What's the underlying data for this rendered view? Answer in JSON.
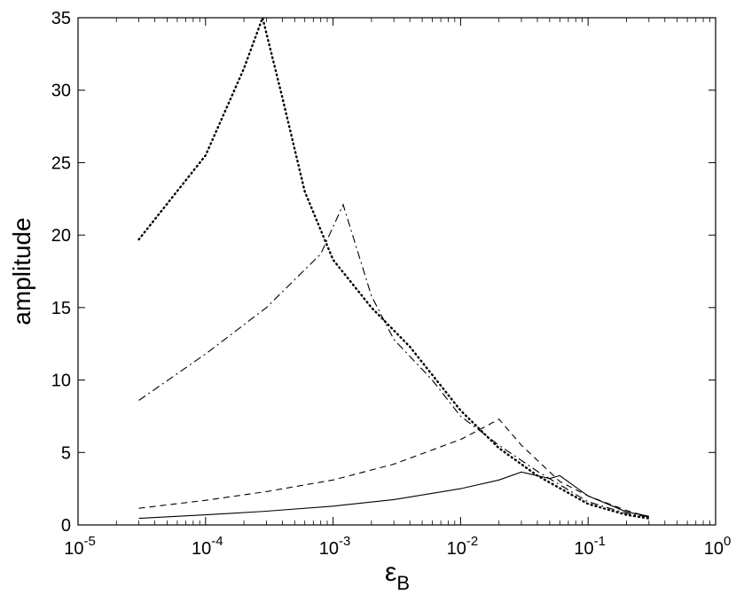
{
  "chart_data": {
    "type": "line",
    "xscale": "log",
    "xlim": [
      1e-05,
      1
    ],
    "ylim": [
      0,
      35
    ],
    "xlabel": "ε",
    "xlabel_subscript": "B",
    "ylabel": "amplitude",
    "grid": false,
    "legend": "none",
    "x_ticks": [
      {
        "value": 1e-05,
        "base": "10",
        "exp": "-5"
      },
      {
        "value": 0.0001,
        "base": "10",
        "exp": "-4"
      },
      {
        "value": 0.001,
        "base": "10",
        "exp": "-3"
      },
      {
        "value": 0.01,
        "base": "10",
        "exp": "-2"
      },
      {
        "value": 0.1,
        "base": "10",
        "exp": "-1"
      },
      {
        "value": 1,
        "base": "10",
        "exp": "0"
      }
    ],
    "y_ticks": [
      0,
      5,
      10,
      15,
      20,
      25,
      30,
      35
    ],
    "series": [
      {
        "style": "solid",
        "x": [
          3e-05,
          0.0001,
          0.0003,
          0.001,
          0.003,
          0.01,
          0.02,
          0.03,
          0.05,
          0.06,
          0.1,
          0.2,
          0.3
        ],
        "y": [
          0.45,
          0.7,
          0.95,
          1.3,
          1.75,
          2.5,
          3.1,
          3.65,
          3.2,
          3.4,
          2.0,
          0.9,
          0.6
        ]
      },
      {
        "style": "dashed",
        "x": [
          3e-05,
          0.0001,
          0.0003,
          0.001,
          0.003,
          0.01,
          0.015,
          0.02,
          0.03,
          0.06,
          0.1,
          0.2,
          0.3
        ],
        "y": [
          1.15,
          1.7,
          2.3,
          3.1,
          4.2,
          5.9,
          6.7,
          7.3,
          5.5,
          3.0,
          2.0,
          1.0,
          0.55
        ]
      },
      {
        "style": "dashdot",
        "x": [
          3e-05,
          0.0001,
          0.0003,
          0.0008,
          0.0012,
          0.002,
          0.003,
          0.006,
          0.01,
          0.02,
          0.04,
          0.1,
          0.2,
          0.3
        ],
        "y": [
          8.6,
          11.8,
          15.0,
          18.7,
          22.1,
          15.8,
          12.8,
          10.0,
          7.5,
          5.5,
          3.7,
          1.6,
          0.8,
          0.55
        ]
      },
      {
        "style": "dotted",
        "x": [
          3e-05,
          0.0001,
          0.0002,
          0.00028,
          0.0004,
          0.0006,
          0.001,
          0.002,
          0.004,
          0.01,
          0.02,
          0.04,
          0.1,
          0.2,
          0.3
        ],
        "y": [
          19.7,
          25.5,
          31.5,
          35.0,
          29.5,
          23.0,
          18.3,
          15.0,
          12.3,
          7.9,
          5.3,
          3.4,
          1.45,
          0.7,
          0.45
        ]
      }
    ]
  }
}
